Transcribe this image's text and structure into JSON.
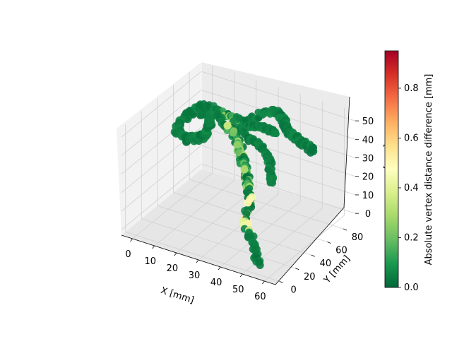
{
  "chart_data": {
    "type": "scatter",
    "title": "",
    "xlabel": "X [mm]",
    "ylabel": "Y [mm]",
    "zlabel": "Z [mm]",
    "xlim": [
      -5,
      65
    ],
    "ylim": [
      -5,
      95
    ],
    "zlim": [
      -3,
      55
    ],
    "x_ticks": [
      0,
      10,
      20,
      30,
      40,
      50,
      60
    ],
    "y_ticks": [
      0,
      20,
      40,
      60,
      80
    ],
    "z_ticks": [
      0,
      10,
      20,
      30,
      40,
      50
    ],
    "grid": true,
    "colorbar": {
      "label": "Absolute vertex distance difference [mm]",
      "range": [
        0.0,
        0.95
      ],
      "ticks": [
        "0.0",
        "0.2",
        "0.4",
        "0.6",
        "0.8"
      ],
      "tick_values": [
        0.0,
        0.2,
        0.4,
        0.6,
        0.8
      ],
      "colormap": "RdYlGn_r",
      "colors": [
        "#006837",
        "#1a9850",
        "#66bd63",
        "#a6d96a",
        "#d9ef8b",
        "#ffffbf",
        "#fee08b",
        "#fdae61",
        "#f46d43",
        "#d73027",
        "#a50026"
      ]
    },
    "points_note_color_low": "#006837"
  }
}
